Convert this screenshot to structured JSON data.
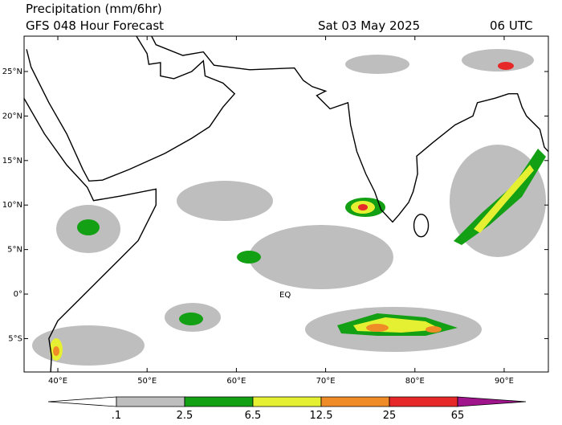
{
  "map": {
    "title": "Precipitation (mm/6hr)",
    "subtitle": "GFS 048 Hour Forecast",
    "date": "Sat 03 May 2025",
    "time": "06 UTC",
    "annotation": "EQ",
    "xlim": [
      36.22,
      94.95
    ],
    "ylim": [
      -8.75,
      28.97
    ],
    "xticks": [
      {
        "value": 40,
        "label": "40°E"
      },
      {
        "value": 50,
        "label": "50°E"
      },
      {
        "value": 60,
        "label": "60°E"
      },
      {
        "value": 70,
        "label": "70°E"
      },
      {
        "value": 80,
        "label": "80°E"
      },
      {
        "value": 90,
        "label": "90°E"
      }
    ],
    "yticks": [
      {
        "value": 25,
        "label": "25°N"
      },
      {
        "value": 20,
        "label": "20°N"
      },
      {
        "value": 15,
        "label": "15°N"
      },
      {
        "value": 10,
        "label": "10°N"
      },
      {
        "value": 5,
        "label": "5°N"
      },
      {
        "value": 0,
        "label": "0°"
      },
      {
        "value": -5,
        "label": "5°S"
      }
    ],
    "colorbar": {
      "labels": [
        ".1",
        "2.5",
        "6.5",
        "12.5",
        "25",
        "65"
      ],
      "colors": [
        "#ffffff",
        "#bebebe",
        "#14a014",
        "#e6f032",
        "#f08c28",
        "#e62828",
        "#a0148c"
      ]
    }
  }
}
